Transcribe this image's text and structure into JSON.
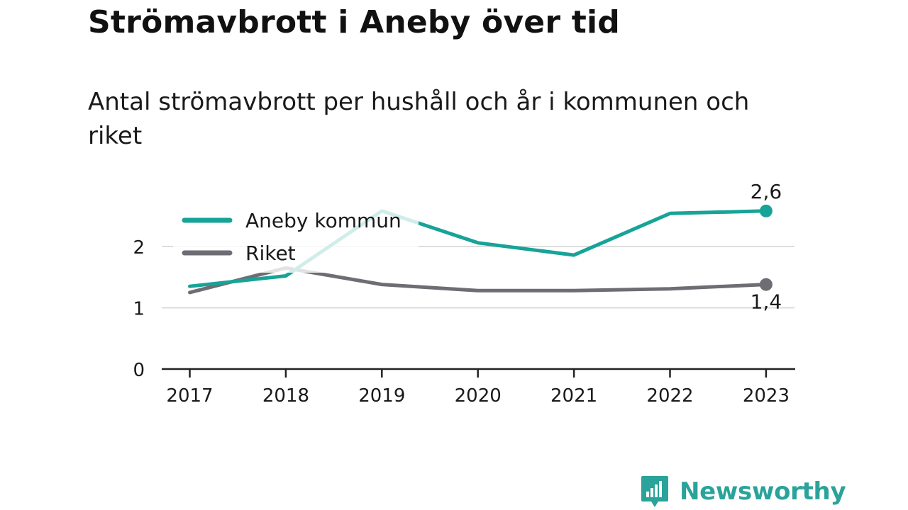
{
  "title": "Strömavbrott i Aneby över tid",
  "subtitle": "Antal strömavbrott per hushåll och år i kommunen och riket",
  "brand": {
    "name": "Newsworthy",
    "icon": "newsworthy-logo-icon",
    "color": "#2aa39a"
  },
  "colors": {
    "aneby": "#17a398",
    "riket": "#6e6d73",
    "grid": "#dddddd",
    "axis": "#222222",
    "text": "#1a1a1a",
    "highlight": "#cdeeed"
  },
  "chart_data": {
    "type": "line",
    "x": [
      "2017",
      "2018",
      "2019",
      "2020",
      "2021",
      "2022",
      "2023"
    ],
    "ylim": [
      0,
      2.6
    ],
    "yticks": [
      0,
      1,
      2
    ],
    "ytick_labels": [
      "0",
      "1",
      "2"
    ],
    "xlabel": "",
    "ylabel": "",
    "grid": true,
    "legend": "top-left",
    "series": [
      {
        "name": "Aneby kommun",
        "color_key": "aneby",
        "values": [
          1.35,
          1.52,
          2.58,
          2.06,
          1.86,
          2.54,
          2.58
        ],
        "end_label": "2,6",
        "end_label_position": "above"
      },
      {
        "name": "Riket",
        "color_key": "riket",
        "values": [
          1.25,
          1.65,
          1.38,
          1.28,
          1.28,
          1.31,
          1.38
        ],
        "end_label": "1,4",
        "end_label_position": "below"
      }
    ]
  }
}
